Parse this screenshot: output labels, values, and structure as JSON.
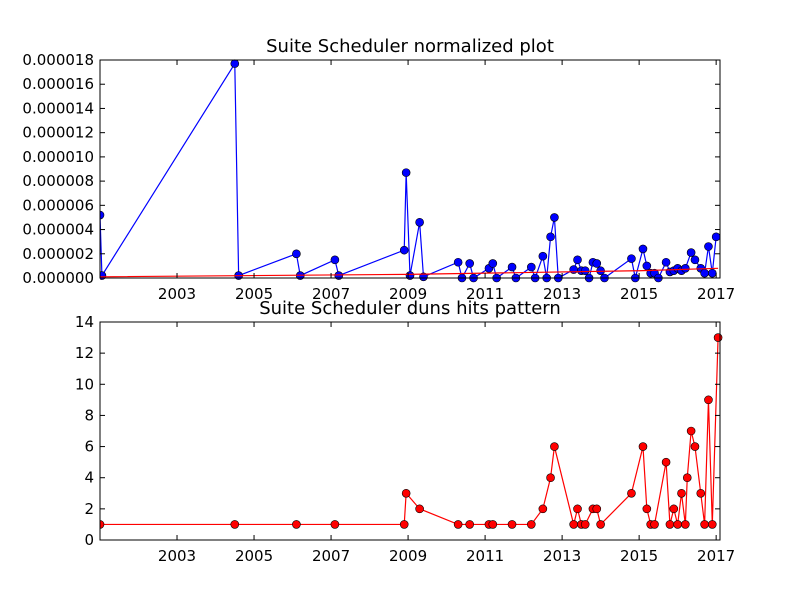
{
  "chart_data": [
    {
      "type": "line",
      "title": "Suite Scheduler normalized plot",
      "xlabel": "",
      "ylabel": "",
      "xlim": [
        2001.0,
        2017.1
      ],
      "ylim": [
        0,
        1.8e-05
      ],
      "x_ticks": [
        "2003",
        "2005",
        "2007",
        "2009",
        "2011",
        "2013",
        "2015",
        "2017"
      ],
      "y_ticks": [
        "0.000000",
        "0.000002",
        "0.000004",
        "0.000006",
        "0.000008",
        "0.000010",
        "0.000012",
        "0.000014",
        "0.000016",
        "0.000018"
      ],
      "grid": false,
      "legend": false,
      "colors": {
        "series": "#0000ff",
        "trend": "#ff0000"
      },
      "series": [
        {
          "values": [
            [
              2001.0,
              5.2e-06
            ],
            [
              2001.05,
              2e-07
            ],
            [
              2004.5,
              1.77e-05
            ],
            [
              2004.6,
              2e-07
            ],
            [
              2006.1,
              2e-06
            ],
            [
              2006.2,
              2e-07
            ],
            [
              2007.1,
              1.5e-06
            ],
            [
              2007.2,
              2e-07
            ],
            [
              2008.9,
              2.3e-06
            ],
            [
              2008.95,
              8.7e-06
            ],
            [
              2009.05,
              2e-07
            ],
            [
              2009.3,
              4.6e-06
            ],
            [
              2009.4,
              1e-07
            ],
            [
              2010.3,
              1.3e-06
            ],
            [
              2010.4,
              0.0
            ],
            [
              2010.6,
              1.2e-06
            ],
            [
              2010.7,
              0.0
            ],
            [
              2011.1,
              8e-07
            ],
            [
              2011.2,
              1.2e-06
            ],
            [
              2011.3,
              0.0
            ],
            [
              2011.7,
              9e-07
            ],
            [
              2011.8,
              0.0
            ],
            [
              2012.2,
              9e-07
            ],
            [
              2012.3,
              0.0
            ],
            [
              2012.5,
              1.8e-06
            ],
            [
              2012.6,
              0.0
            ],
            [
              2012.7,
              3.4e-06
            ],
            [
              2012.8,
              5e-06
            ],
            [
              2012.9,
              0.0
            ],
            [
              2013.3,
              7e-07
            ],
            [
              2013.4,
              1.5e-06
            ],
            [
              2013.5,
              6e-07
            ],
            [
              2013.6,
              6e-07
            ],
            [
              2013.7,
              0.0
            ],
            [
              2013.8,
              1.3e-06
            ],
            [
              2013.9,
              1.2e-06
            ],
            [
              2014.0,
              6e-07
            ],
            [
              2014.1,
              0.0
            ],
            [
              2014.8,
              1.6e-06
            ],
            [
              2014.9,
              0.0
            ],
            [
              2015.1,
              2.4e-06
            ],
            [
              2015.2,
              1e-06
            ],
            [
              2015.3,
              4e-07
            ],
            [
              2015.4,
              4e-07
            ],
            [
              2015.5,
              0.0
            ],
            [
              2015.7,
              1.3e-06
            ],
            [
              2015.8,
              5e-07
            ],
            [
              2015.9,
              6e-07
            ],
            [
              2016.0,
              8e-07
            ],
            [
              2016.1,
              6e-07
            ],
            [
              2016.2,
              8e-07
            ],
            [
              2016.35,
              2.1e-06
            ],
            [
              2016.45,
              1.5e-06
            ],
            [
              2016.6,
              8e-07
            ],
            [
              2016.7,
              4e-07
            ],
            [
              2016.8,
              2.6e-06
            ],
            [
              2016.9,
              4e-07
            ],
            [
              2017.0,
              3.4e-06
            ]
          ]
        },
        {
          "values": [
            [
              2001.0,
              1e-07
            ],
            [
              2009.0,
              3e-07
            ],
            [
              2015.0,
              6e-07
            ],
            [
              2017.05,
              8e-07
            ]
          ]
        }
      ]
    },
    {
      "type": "line",
      "title": "Suite Scheduler duns hits pattern",
      "xlabel": "",
      "ylabel": "",
      "xlim": [
        2001.0,
        2017.1
      ],
      "ylim": [
        0,
        14
      ],
      "x_ticks": [
        "2003",
        "2005",
        "2007",
        "2009",
        "2011",
        "2013",
        "2015",
        "2017"
      ],
      "y_ticks": [
        "0",
        "2",
        "4",
        "6",
        "8",
        "10",
        "12",
        "14"
      ],
      "grid": false,
      "legend": false,
      "colors": {
        "series": "#ff0000"
      },
      "series": [
        {
          "values": [
            [
              2001.0,
              1
            ],
            [
              2004.5,
              1
            ],
            [
              2006.1,
              1
            ],
            [
              2007.1,
              1
            ],
            [
              2008.9,
              1
            ],
            [
              2008.95,
              3
            ],
            [
              2009.3,
              2
            ],
            [
              2010.3,
              1
            ],
            [
              2010.6,
              1
            ],
            [
              2011.1,
              1
            ],
            [
              2011.2,
              1
            ],
            [
              2011.7,
              1
            ],
            [
              2012.2,
              1
            ],
            [
              2012.5,
              2
            ],
            [
              2012.7,
              4
            ],
            [
              2012.8,
              6
            ],
            [
              2013.3,
              1
            ],
            [
              2013.4,
              2
            ],
            [
              2013.5,
              1
            ],
            [
              2013.6,
              1
            ],
            [
              2013.8,
              2
            ],
            [
              2013.9,
              2
            ],
            [
              2014.0,
              1
            ],
            [
              2014.8,
              3
            ],
            [
              2015.1,
              6
            ],
            [
              2015.2,
              2
            ],
            [
              2015.3,
              1
            ],
            [
              2015.4,
              1
            ],
            [
              2015.7,
              5
            ],
            [
              2015.8,
              1
            ],
            [
              2015.9,
              2
            ],
            [
              2016.0,
              1
            ],
            [
              2016.1,
              3
            ],
            [
              2016.2,
              1
            ],
            [
              2016.25,
              4
            ],
            [
              2016.35,
              7
            ],
            [
              2016.45,
              6
            ],
            [
              2016.6,
              3
            ],
            [
              2016.7,
              1
            ],
            [
              2016.8,
              9
            ],
            [
              2016.9,
              1
            ],
            [
              2017.05,
              13
            ]
          ]
        }
      ]
    }
  ]
}
